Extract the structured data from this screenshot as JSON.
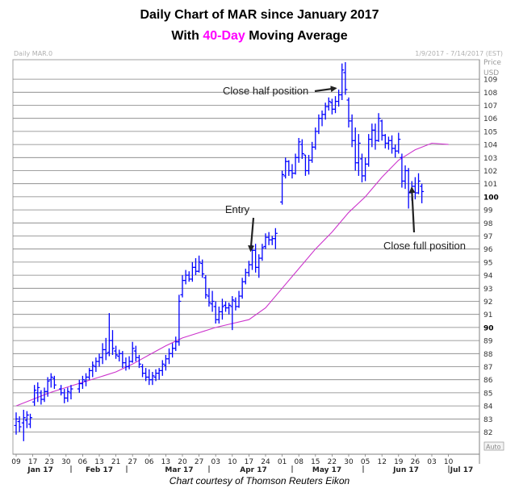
{
  "title": {
    "line1": "Daily Chart of MAR since January 2017",
    "line2_prefix": "With ",
    "line2_highlight": "40-Day",
    "line2_suffix": " Moving Average",
    "highlight_color": "#ff00ff"
  },
  "header": {
    "symbol": "Daily MAR.0",
    "range": "1/9/2017 - 7/14/2017 (EST)"
  },
  "credit": "Chart courtesy of Thomson Reuters Eikon",
  "chart_data": {
    "type": "line",
    "title": "Daily Chart of MAR since January 2017",
    "subtitle": "With 40-Day Moving Average",
    "y_axis_title": "Price",
    "y_unit": "USD",
    "ylim": [
      81,
      111
    ],
    "y_ticks": [
      82,
      83,
      84,
      85,
      86,
      87,
      88,
      89,
      90,
      91,
      92,
      93,
      94,
      95,
      96,
      97,
      98,
      99,
      100,
      101,
      102,
      103,
      104,
      105,
      106,
      107,
      108,
      109
    ],
    "y_bold_ticks": [
      90,
      100
    ],
    "x_tick_labels": [
      "09",
      "17",
      "23",
      "30",
      "06",
      "13",
      "21",
      "27",
      "06",
      "13",
      "20",
      "27",
      "03",
      "10",
      "17",
      "24",
      "01",
      "08",
      "15",
      "22",
      "30",
      "05",
      "12",
      "19",
      "26",
      "03",
      "10"
    ],
    "x_month_labels": [
      "Jan 17",
      "Feb 17",
      "Mar 17",
      "Apr 17",
      "May 17",
      "Jun 17",
      "Jul 17"
    ],
    "auto_label": "Auto",
    "grid": "horizontal",
    "colors": {
      "price_bars": "#0000ff",
      "moving_average": "#cc33cc",
      "grid": "#808080"
    },
    "series": [
      {
        "name": "40-Day",
        "kind": "line",
        "values": [
          84.0,
          84.5,
          85.0,
          85.4,
          85.8,
          86.2,
          86.6,
          87.2,
          87.9,
          88.6,
          89.2,
          89.6,
          90.0,
          90.3,
          90.6,
          91.5,
          93.0,
          94.5,
          96.0,
          97.3,
          98.8,
          100.0,
          101.5,
          102.8,
          103.6,
          104.1,
          104.0
        ]
      },
      {
        "name": "MAR",
        "kind": "ohlc",
        "values": [
          {
            "x": 0.0,
            "h": 83.5,
            "l": 81.8,
            "o": 82.5,
            "c": 83.0
          },
          {
            "x": 0.2,
            "h": 83.2,
            "l": 82.0,
            "o": 82.8,
            "c": 82.4
          },
          {
            "x": 0.45,
            "h": 83.7,
            "l": 81.3,
            "o": 82.7,
            "c": 83.1
          },
          {
            "x": 0.65,
            "h": 83.6,
            "l": 82.3,
            "o": 82.9,
            "c": 83.3
          },
          {
            "x": 0.85,
            "h": 83.4,
            "l": 82.3,
            "o": 82.6,
            "c": 83.1
          },
          {
            "x": 1.1,
            "h": 85.6,
            "l": 84.0,
            "o": 84.3,
            "c": 85.2
          },
          {
            "x": 1.3,
            "h": 85.8,
            "l": 84.3,
            "o": 85.0,
            "c": 85.4
          },
          {
            "x": 1.5,
            "h": 85.2,
            "l": 84.1,
            "o": 85.0,
            "c": 84.5
          },
          {
            "x": 1.7,
            "h": 85.4,
            "l": 84.3,
            "o": 84.5,
            "c": 85.1
          },
          {
            "x": 1.9,
            "h": 86.2,
            "l": 84.7,
            "o": 85.1,
            "c": 85.9
          },
          {
            "x": 2.1,
            "h": 86.5,
            "l": 85.4,
            "o": 86.0,
            "c": 86.2
          },
          {
            "x": 2.3,
            "h": 86.3,
            "l": 85.3,
            "o": 86.1,
            "c": 85.6
          },
          {
            "x": 2.7,
            "h": 85.6,
            "l": 84.8,
            "o": 85.3,
            "c": 85.0
          },
          {
            "x": 2.9,
            "h": 85.3,
            "l": 84.2,
            "o": 85.0,
            "c": 84.6
          },
          {
            "x": 3.1,
            "h": 85.4,
            "l": 84.3,
            "o": 84.6,
            "c": 85.1
          },
          {
            "x": 3.3,
            "h": 85.6,
            "l": 84.5,
            "o": 85.0,
            "c": 85.3
          },
          {
            "x": 3.8,
            "h": 86.0,
            "l": 85.0,
            "o": 85.3,
            "c": 85.7
          },
          {
            "x": 4.0,
            "h": 86.3,
            "l": 85.3,
            "o": 85.7,
            "c": 86.0
          },
          {
            "x": 4.2,
            "h": 86.5,
            "l": 85.5,
            "o": 85.9,
            "c": 86.2
          },
          {
            "x": 4.4,
            "h": 86.9,
            "l": 86.0,
            "o": 86.2,
            "c": 86.7
          },
          {
            "x": 4.6,
            "h": 87.4,
            "l": 86.2,
            "o": 86.7,
            "c": 87.1
          },
          {
            "x": 4.8,
            "h": 87.7,
            "l": 86.6,
            "o": 87.0,
            "c": 87.4
          },
          {
            "x": 5.0,
            "h": 88.0,
            "l": 87.0,
            "o": 87.4,
            "c": 87.7
          },
          {
            "x": 5.2,
            "h": 88.8,
            "l": 87.2,
            "o": 87.7,
            "c": 88.3
          },
          {
            "x": 5.4,
            "h": 89.2,
            "l": 87.5,
            "o": 88.3,
            "c": 88.0
          },
          {
            "x": 5.6,
            "h": 91.1,
            "l": 87.8,
            "o": 88.1,
            "c": 89.0
          },
          {
            "x": 5.8,
            "h": 89.8,
            "l": 87.9,
            "o": 89.0,
            "c": 88.4
          },
          {
            "x": 6.0,
            "h": 88.6,
            "l": 87.6,
            "o": 88.2,
            "c": 87.9
          },
          {
            "x": 6.2,
            "h": 88.3,
            "l": 87.4,
            "o": 87.8,
            "c": 88.0
          },
          {
            "x": 6.4,
            "h": 88.2,
            "l": 86.9,
            "o": 88.0,
            "c": 87.3
          },
          {
            "x": 6.6,
            "h": 87.7,
            "l": 86.7,
            "o": 87.3,
            "c": 87.0
          },
          {
            "x": 6.8,
            "h": 87.8,
            "l": 86.8,
            "o": 87.0,
            "c": 87.4
          },
          {
            "x": 7.0,
            "h": 88.9,
            "l": 87.3,
            "o": 87.4,
            "c": 88.4
          },
          {
            "x": 7.2,
            "h": 88.6,
            "l": 87.4,
            "o": 88.2,
            "c": 87.7
          },
          {
            "x": 7.4,
            "h": 87.9,
            "l": 86.9,
            "o": 87.7,
            "c": 87.2
          },
          {
            "x": 7.6,
            "h": 87.2,
            "l": 86.2,
            "o": 87.0,
            "c": 86.5
          },
          {
            "x": 7.8,
            "h": 86.9,
            "l": 85.9,
            "o": 86.5,
            "c": 86.2
          },
          {
            "x": 8.0,
            "h": 86.8,
            "l": 85.6,
            "o": 86.2,
            "c": 86.0
          },
          {
            "x": 8.2,
            "h": 86.6,
            "l": 85.6,
            "o": 86.0,
            "c": 86.3
          },
          {
            "x": 8.4,
            "h": 86.8,
            "l": 85.9,
            "o": 86.2,
            "c": 86.5
          },
          {
            "x": 8.6,
            "h": 86.9,
            "l": 86.0,
            "o": 86.5,
            "c": 86.7
          },
          {
            "x": 8.8,
            "h": 87.5,
            "l": 86.3,
            "o": 86.7,
            "c": 87.2
          },
          {
            "x": 9.0,
            "h": 87.9,
            "l": 86.7,
            "o": 87.1,
            "c": 87.6
          },
          {
            "x": 9.2,
            "h": 88.4,
            "l": 87.2,
            "o": 87.6,
            "c": 88.0
          },
          {
            "x": 9.4,
            "h": 88.8,
            "l": 87.7,
            "o": 88.0,
            "c": 88.4
          },
          {
            "x": 9.6,
            "h": 89.3,
            "l": 88.2,
            "o": 88.4,
            "c": 88.9
          },
          {
            "x": 9.8,
            "h": 92.5,
            "l": 88.6,
            "o": 88.9,
            "c": 92.0
          },
          {
            "x": 10.0,
            "h": 94.0,
            "l": 92.3,
            "o": 92.5,
            "c": 93.6
          },
          {
            "x": 10.2,
            "h": 94.4,
            "l": 93.3,
            "o": 93.6,
            "c": 94.0
          },
          {
            "x": 10.4,
            "h": 94.3,
            "l": 93.5,
            "o": 94.0,
            "c": 93.7
          },
          {
            "x": 10.6,
            "h": 95.0,
            "l": 93.5,
            "o": 93.7,
            "c": 94.6
          },
          {
            "x": 10.8,
            "h": 95.3,
            "l": 94.0,
            "o": 94.6,
            "c": 94.3
          },
          {
            "x": 11.0,
            "h": 95.5,
            "l": 94.2,
            "o": 94.3,
            "c": 95.0
          },
          {
            "x": 11.2,
            "h": 95.2,
            "l": 93.8,
            "o": 94.9,
            "c": 94.1
          },
          {
            "x": 11.4,
            "h": 94.0,
            "l": 92.2,
            "o": 93.8,
            "c": 92.5
          },
          {
            "x": 11.6,
            "h": 93.0,
            "l": 91.6,
            "o": 92.4,
            "c": 91.9
          },
          {
            "x": 11.8,
            "h": 92.8,
            "l": 91.2,
            "o": 91.8,
            "c": 92.0
          },
          {
            "x": 12.0,
            "h": 92.0,
            "l": 90.3,
            "o": 91.6,
            "c": 90.6
          },
          {
            "x": 12.2,
            "h": 91.6,
            "l": 90.3,
            "o": 90.6,
            "c": 91.2
          },
          {
            "x": 12.4,
            "h": 92.2,
            "l": 90.6,
            "o": 91.2,
            "c": 91.6
          },
          {
            "x": 12.6,
            "h": 92.0,
            "l": 91.2,
            "o": 91.7,
            "c": 91.5
          },
          {
            "x": 12.8,
            "h": 91.9,
            "l": 91.0,
            "o": 91.5,
            "c": 91.7
          },
          {
            "x": 13.0,
            "h": 92.4,
            "l": 89.8,
            "o": 91.6,
            "c": 92.1
          },
          {
            "x": 13.2,
            "h": 92.3,
            "l": 91.3,
            "o": 92.0,
            "c": 91.6
          },
          {
            "x": 13.4,
            "h": 92.8,
            "l": 91.5,
            "o": 91.6,
            "c": 92.4
          },
          {
            "x": 13.6,
            "h": 93.8,
            "l": 92.2,
            "o": 92.4,
            "c": 93.5
          },
          {
            "x": 13.8,
            "h": 94.5,
            "l": 93.3,
            "o": 93.5,
            "c": 94.2
          },
          {
            "x": 14.0,
            "h": 95.1,
            "l": 93.9,
            "o": 94.2,
            "c": 94.8
          },
          {
            "x": 14.2,
            "h": 96.3,
            "l": 94.4,
            "o": 94.8,
            "c": 95.9
          },
          {
            "x": 14.4,
            "h": 96.4,
            "l": 94.2,
            "o": 95.9,
            "c": 94.6
          },
          {
            "x": 14.6,
            "h": 95.6,
            "l": 93.8,
            "o": 94.6,
            "c": 95.3
          },
          {
            "x": 14.8,
            "h": 96.4,
            "l": 95.1,
            "o": 95.3,
            "c": 96.1
          },
          {
            "x": 15.0,
            "h": 97.2,
            "l": 96.0,
            "o": 96.2,
            "c": 96.9
          },
          {
            "x": 15.2,
            "h": 97.3,
            "l": 96.3,
            "o": 96.9,
            "c": 96.7
          },
          {
            "x": 15.4,
            "h": 97.0,
            "l": 96.3,
            "o": 96.7,
            "c": 96.8
          },
          {
            "x": 15.6,
            "h": 97.6,
            "l": 96.0,
            "o": 96.8,
            "c": 97.2
          },
          {
            "x": 16.0,
            "h": 102.0,
            "l": 99.4,
            "o": 99.6,
            "c": 101.7
          },
          {
            "x": 16.2,
            "h": 103.0,
            "l": 101.4,
            "o": 101.6,
            "c": 102.7
          },
          {
            "x": 16.4,
            "h": 102.8,
            "l": 101.6,
            "o": 102.7,
            "c": 102.0
          },
          {
            "x": 16.6,
            "h": 102.5,
            "l": 101.4,
            "o": 102.0,
            "c": 101.8
          },
          {
            "x": 16.8,
            "h": 103.3,
            "l": 101.7,
            "o": 101.8,
            "c": 103.0
          },
          {
            "x": 17.0,
            "h": 104.5,
            "l": 102.6,
            "o": 103.0,
            "c": 104.2
          },
          {
            "x": 17.2,
            "h": 104.4,
            "l": 102.9,
            "o": 104.0,
            "c": 103.3
          },
          {
            "x": 17.4,
            "h": 103.2,
            "l": 101.6,
            "o": 103.2,
            "c": 102.0
          },
          {
            "x": 17.6,
            "h": 103.2,
            "l": 101.7,
            "o": 102.0,
            "c": 102.8
          },
          {
            "x": 17.8,
            "h": 104.2,
            "l": 102.6,
            "o": 102.8,
            "c": 103.8
          },
          {
            "x": 18.0,
            "h": 105.3,
            "l": 103.6,
            "o": 103.8,
            "c": 105.0
          },
          {
            "x": 18.2,
            "h": 106.3,
            "l": 104.8,
            "o": 105.0,
            "c": 106.0
          },
          {
            "x": 18.4,
            "h": 106.6,
            "l": 105.4,
            "o": 106.0,
            "c": 106.3
          },
          {
            "x": 18.6,
            "h": 107.2,
            "l": 105.9,
            "o": 106.3,
            "c": 106.9
          },
          {
            "x": 18.8,
            "h": 107.6,
            "l": 106.6,
            "o": 106.9,
            "c": 107.3
          },
          {
            "x": 19.0,
            "h": 107.5,
            "l": 106.3,
            "o": 107.2,
            "c": 106.7
          },
          {
            "x": 19.2,
            "h": 107.7,
            "l": 106.4,
            "o": 106.7,
            "c": 107.3
          },
          {
            "x": 19.4,
            "h": 108.2,
            "l": 106.9,
            "o": 107.3,
            "c": 107.8
          },
          {
            "x": 19.6,
            "h": 110.2,
            "l": 107.4,
            "o": 107.8,
            "c": 109.7
          },
          {
            "x": 19.8,
            "h": 110.3,
            "l": 107.8,
            "o": 109.5,
            "c": 108.2
          },
          {
            "x": 20.0,
            "h": 107.6,
            "l": 105.3,
            "o": 107.4,
            "c": 105.8
          },
          {
            "x": 20.2,
            "h": 106.3,
            "l": 103.8,
            "o": 105.8,
            "c": 104.3
          },
          {
            "x": 20.4,
            "h": 105.3,
            "l": 102.0,
            "o": 104.3,
            "c": 102.6
          },
          {
            "x": 20.6,
            "h": 104.8,
            "l": 101.6,
            "o": 102.6,
            "c": 104.1
          },
          {
            "x": 20.8,
            "h": 103.3,
            "l": 101.1,
            "o": 102.9,
            "c": 101.6
          },
          {
            "x": 21.0,
            "h": 103.0,
            "l": 101.2,
            "o": 101.6,
            "c": 102.5
          },
          {
            "x": 21.2,
            "h": 104.8,
            "l": 102.3,
            "o": 102.5,
            "c": 104.4
          },
          {
            "x": 21.4,
            "h": 105.6,
            "l": 103.8,
            "o": 104.4,
            "c": 105.1
          },
          {
            "x": 21.6,
            "h": 105.6,
            "l": 103.6,
            "o": 105.1,
            "c": 104.3
          },
          {
            "x": 21.8,
            "h": 106.4,
            "l": 104.2,
            "o": 104.3,
            "c": 106.0
          },
          {
            "x": 22.0,
            "h": 105.9,
            "l": 104.3,
            "o": 105.8,
            "c": 104.7
          },
          {
            "x": 22.2,
            "h": 104.8,
            "l": 103.7,
            "o": 104.7,
            "c": 104.1
          },
          {
            "x": 22.4,
            "h": 104.6,
            "l": 103.6,
            "o": 104.1,
            "c": 104.3
          },
          {
            "x": 22.6,
            "h": 104.7,
            "l": 103.3,
            "o": 104.3,
            "c": 103.7
          },
          {
            "x": 22.8,
            "h": 104.0,
            "l": 103.0,
            "o": 103.7,
            "c": 103.5
          },
          {
            "x": 23.0,
            "h": 104.9,
            "l": 103.3,
            "o": 103.5,
            "c": 104.4
          },
          {
            "x": 23.2,
            "h": 103.3,
            "l": 100.7,
            "o": 103.0,
            "c": 101.2
          },
          {
            "x": 23.4,
            "h": 102.4,
            "l": 100.6,
            "o": 101.2,
            "c": 102.0
          },
          {
            "x": 23.6,
            "h": 102.2,
            "l": 99.1,
            "o": 102.0,
            "c": 100.3
          },
          {
            "x": 23.8,
            "h": 101.2,
            "l": 99.7,
            "o": 100.3,
            "c": 100.8
          },
          {
            "x": 24.0,
            "h": 101.5,
            "l": 99.8,
            "o": 100.8,
            "c": 100.3
          },
          {
            "x": 24.2,
            "h": 101.8,
            "l": 100.2,
            "o": 100.3,
            "c": 101.2
          },
          {
            "x": 24.4,
            "h": 101.0,
            "l": 99.5,
            "o": 100.8,
            "c": 100.4
          }
        ]
      }
    ],
    "annotations": [
      {
        "text": "Close half position",
        "target_x": 19.5,
        "target_y": 108.3
      },
      {
        "text": "Entry",
        "target_x": 14.3,
        "target_y": 95.9
      },
      {
        "text": "Close full position",
        "target_x": 23.6,
        "target_y": 100.3
      }
    ]
  }
}
